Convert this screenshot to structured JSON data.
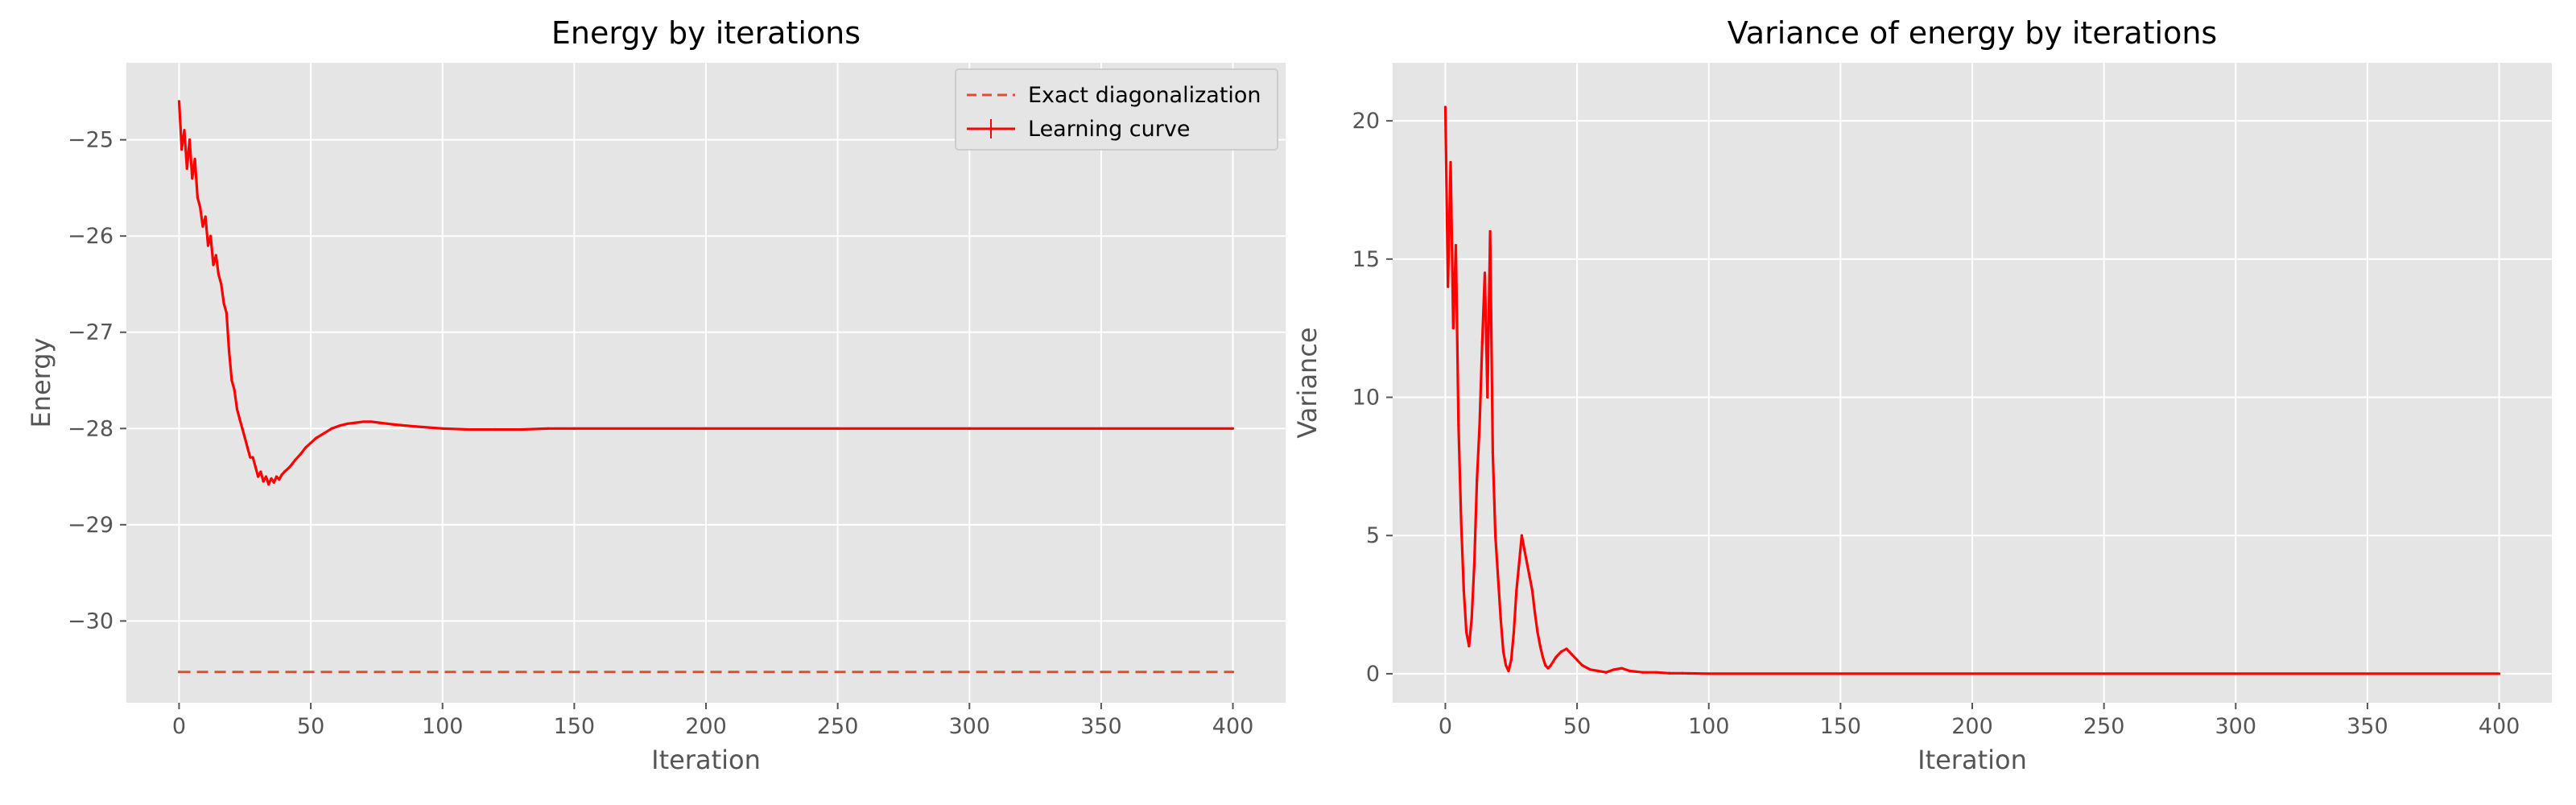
{
  "chart_data": [
    {
      "type": "line",
      "title": "Energy by iterations",
      "xlabel": "Iteration",
      "ylabel": "Energy",
      "xlim": [
        -20,
        420
      ],
      "ylim": [
        -30.85,
        -24.2
      ],
      "xticks": [
        0,
        50,
        100,
        150,
        200,
        250,
        300,
        350,
        400
      ],
      "yticks": [
        -30,
        -29,
        -28,
        -27,
        -26,
        -25
      ],
      "grid": true,
      "legend": "top-right",
      "series": [
        {
          "name": "Exact diagonalization",
          "style": "dashed",
          "color": "#e24a33",
          "x": [
            0,
            400
          ],
          "y": [
            -30.53,
            -30.53
          ]
        },
        {
          "name": "Learning curve",
          "style": "solid-with-errorbars",
          "color": "#ff0000",
          "x": [
            0,
            1,
            2,
            3,
            4,
            5,
            6,
            7,
            8,
            9,
            10,
            11,
            12,
            13,
            14,
            15,
            16,
            17,
            18,
            19,
            20,
            21,
            22,
            23,
            24,
            25,
            26,
            27,
            28,
            29,
            30,
            31,
            32,
            33,
            34,
            35,
            36,
            37,
            38,
            39,
            40,
            42,
            44,
            46,
            48,
            50,
            52,
            55,
            58,
            61,
            64,
            67,
            70,
            73,
            76,
            79,
            82,
            86,
            90,
            95,
            100,
            110,
            120,
            130,
            140,
            150,
            200,
            250,
            300,
            350,
            400
          ],
          "y": [
            -24.6,
            -25.1,
            -24.9,
            -25.3,
            -25.0,
            -25.4,
            -25.2,
            -25.6,
            -25.7,
            -25.9,
            -25.8,
            -26.1,
            -26.0,
            -26.3,
            -26.2,
            -26.4,
            -26.5,
            -26.7,
            -26.8,
            -27.2,
            -27.5,
            -27.6,
            -27.8,
            -27.9,
            -28.0,
            -28.1,
            -28.2,
            -28.3,
            -28.3,
            -28.4,
            -28.5,
            -28.45,
            -28.55,
            -28.5,
            -28.58,
            -28.52,
            -28.56,
            -28.5,
            -28.53,
            -28.48,
            -28.45,
            -28.4,
            -28.33,
            -28.27,
            -28.2,
            -28.15,
            -28.1,
            -28.05,
            -28.0,
            -27.97,
            -27.95,
            -27.94,
            -27.93,
            -27.93,
            -27.94,
            -27.95,
            -27.96,
            -27.97,
            -27.98,
            -27.99,
            -28.0,
            -28.01,
            -28.01,
            -28.01,
            -28.0,
            -28.0,
            -28.0,
            -28.0,
            -28.0,
            -28.0,
            -28.0
          ]
        }
      ]
    },
    {
      "type": "line",
      "title": "Variance of energy by iterations",
      "xlabel": "Iteration",
      "ylabel": "Variance",
      "xlim": [
        -20,
        420
      ],
      "ylim": [
        -1.05,
        22.1
      ],
      "xticks": [
        0,
        50,
        100,
        150,
        200,
        250,
        300,
        350,
        400
      ],
      "yticks": [
        0,
        5,
        10,
        15,
        20
      ],
      "grid": true,
      "series": [
        {
          "color": "#ff0000",
          "x": [
            0,
            1,
            2,
            3,
            4,
            5,
            6,
            7,
            8,
            9,
            10,
            11,
            12,
            13,
            14,
            15,
            16,
            17,
            18,
            19,
            20,
            21,
            22,
            23,
            24,
            25,
            26,
            27,
            28,
            29,
            30,
            31,
            32,
            33,
            34,
            35,
            36,
            37,
            38,
            39,
            40,
            42,
            44,
            46,
            48,
            50,
            52,
            55,
            58,
            61,
            64,
            67,
            70,
            75,
            80,
            85,
            90,
            100,
            150,
            200,
            250,
            300,
            350,
            400
          ],
          "y": [
            20.5,
            14.0,
            18.5,
            12.5,
            15.5,
            9.0,
            5.5,
            3.0,
            1.5,
            1.0,
            2.0,
            4.0,
            7.0,
            9.0,
            12.0,
            14.5,
            10.0,
            16.0,
            8.0,
            5.0,
            3.5,
            2.0,
            0.8,
            0.3,
            0.1,
            0.5,
            1.5,
            3.0,
            4.0,
            5.0,
            4.5,
            4.0,
            3.5,
            3.0,
            2.2,
            1.5,
            1.0,
            0.6,
            0.3,
            0.2,
            0.3,
            0.6,
            0.8,
            0.9,
            0.7,
            0.5,
            0.3,
            0.15,
            0.1,
            0.05,
            0.15,
            0.2,
            0.1,
            0.05,
            0.05,
            0.02,
            0.02,
            0.0,
            0.0,
            0.0,
            0.0,
            0.0,
            0.0,
            0.0
          ]
        }
      ]
    }
  ]
}
